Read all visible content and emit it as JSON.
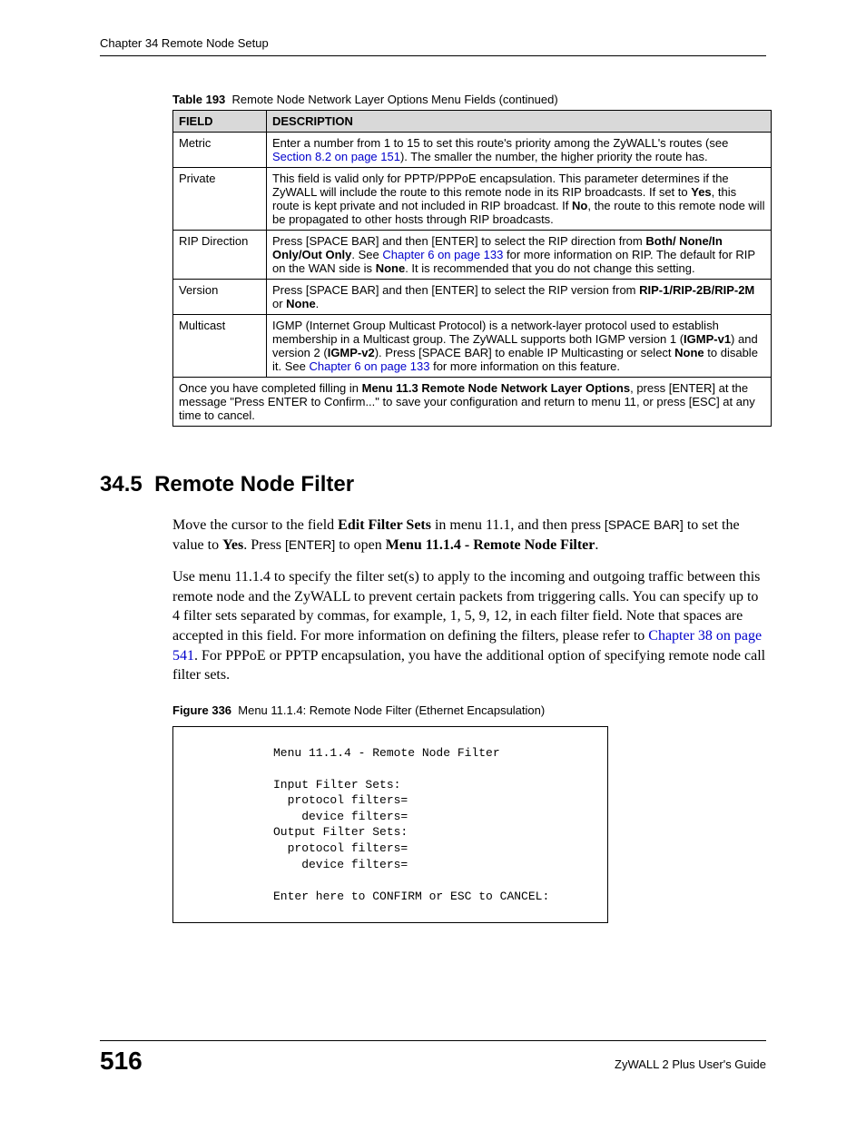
{
  "runningHead": "Chapter 34 Remote Node Setup",
  "tableCaption": {
    "label": "Table 193",
    "title": "Remote Node Network Layer Options Menu Fields (continued)"
  },
  "tableHeaders": {
    "field": "FIELD",
    "description": "DESCRIPTION"
  },
  "rows": {
    "metric": {
      "field": "Metric",
      "d1": "Enter a number from 1 to 15 to set this route's priority among the ZyWALL's routes (see ",
      "link": "Section 8.2 on page 151",
      "d2": "). The smaller the number, the higher priority the route has."
    },
    "private": {
      "field": "Private",
      "d1": "This field is valid only for PPTP/PPPoE encapsulation. This parameter determines if the ZyWALL will include the route to this remote node in its RIP broadcasts. If set to ",
      "yes": "Yes",
      "d2": ", this route is kept private and not included in RIP broadcast. If ",
      "no": "No",
      "d3": ", the route to this remote node will be propagated to other hosts through RIP broadcasts."
    },
    "rip": {
      "field": "RIP Direction",
      "d1": "Press [SPACE BAR] and then [ENTER] to select the RIP direction from ",
      "opts": "Both/ None/In Only/Out Only",
      "d2a": ". See ",
      "link": "Chapter 6 on page 133",
      "d2b": " for more information on RIP. The default for RIP on the WAN side is ",
      "none": "None",
      "d3": ". It is recommended that you do not change this setting."
    },
    "version": {
      "field": "Version",
      "d1": "Press [SPACE BAR] and then [ENTER] to select the RIP version from ",
      "opts": "RIP-1/RIP-2B/RIP-2M",
      "d2": " or ",
      "none": "None",
      "d3": "."
    },
    "multicast": {
      "field": "Multicast",
      "d1": "IGMP (Internet Group Multicast Protocol) is a network-layer protocol used to establish membership in a Multicast group. The ZyWALL supports both IGMP version 1 (",
      "v1": "IGMP-v1",
      "d2": ") and version 2 (",
      "v2": "IGMP-v2",
      "d3": "). Press [SPACE BAR] to enable IP Multicasting or select ",
      "none": "None",
      "d4": " to disable it. See ",
      "link": "Chapter 6 on page 133",
      "d5": " for more information on this feature."
    },
    "footnote": {
      "d1": "Once you have completed filling in ",
      "menu": "Menu 11.3 Remote Node Network Layer Options",
      "d2": ", press [ENTER] at the message \"Press ENTER to Confirm...\" to save your configuration and return to menu 11, or press [ESC] at any time to cancel."
    }
  },
  "section": {
    "number": "34.5",
    "title": "Remote Node Filter"
  },
  "para1": {
    "t1": "Move the cursor to the field ",
    "b1": "Edit Filter Sets",
    "t2": " in menu 11.1, and then press ",
    "k1": "[SPACE BAR]",
    "t3": " to set the value to ",
    "b2": "Yes",
    "t4": ". Press ",
    "k2": "[ENTER]",
    "t5": " to open ",
    "b3": "Menu 11.1.4 - Remote Node Filter",
    "t6": "."
  },
  "para2": {
    "t1": "Use menu 11.1.4 to specify the filter set(s) to apply to the incoming and outgoing traffic between this remote node and the ZyWALL to prevent certain packets from triggering calls. You can specify up to 4 filter sets separated by commas, for example, 1, 5, 9, 12, in each filter field. Note that spaces are accepted in this field. For more information on defining the filters, please refer to ",
    "link": "Chapter 38 on page 541",
    "t2": ". For PPPoE or PPTP encapsulation, you have the additional option of specifying remote node call filter sets."
  },
  "figureCaption": {
    "label": "Figure 336",
    "title": "Menu 11.1.4: Remote Node Filter (Ethernet Encapsulation)"
  },
  "terminal": "Menu 11.1.4 - Remote Node Filter\n\nInput Filter Sets:\n  protocol filters=\n    device filters=\nOutput Filter Sets:\n  protocol filters=\n    device filters=\n\nEnter here to CONFIRM or ESC to CANCEL:",
  "footer": {
    "pageNum": "516",
    "guide": "ZyWALL 2 Plus User's Guide"
  }
}
